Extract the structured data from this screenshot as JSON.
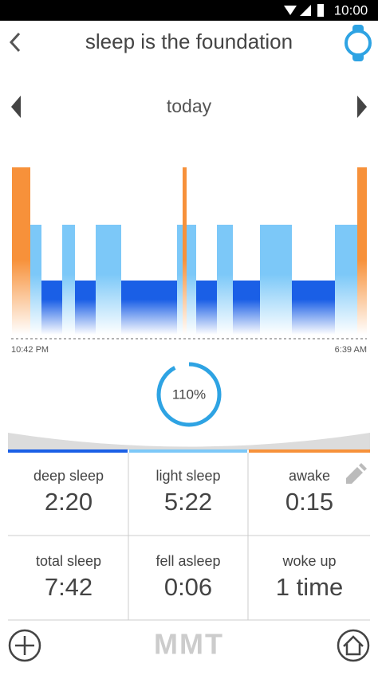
{
  "status_bar": {
    "time": "10:00"
  },
  "header": {
    "title": "sleep is the foundation"
  },
  "date_nav": {
    "label": "today"
  },
  "sleep_chart": {
    "start_time": "10:42 PM",
    "end_time": "6:39 AM",
    "score": "110%"
  },
  "stats": [
    {
      "label": "deep sleep",
      "value": "2:20"
    },
    {
      "label": "light sleep",
      "value": "5:22"
    },
    {
      "label": "awake",
      "value": "0:15"
    },
    {
      "label": "total sleep",
      "value": "7:42"
    },
    {
      "label": "fell asleep",
      "value": "0:06"
    },
    {
      "label": "woke up",
      "value": "1 time"
    }
  ],
  "footer": {
    "brand": "MMT"
  }
}
